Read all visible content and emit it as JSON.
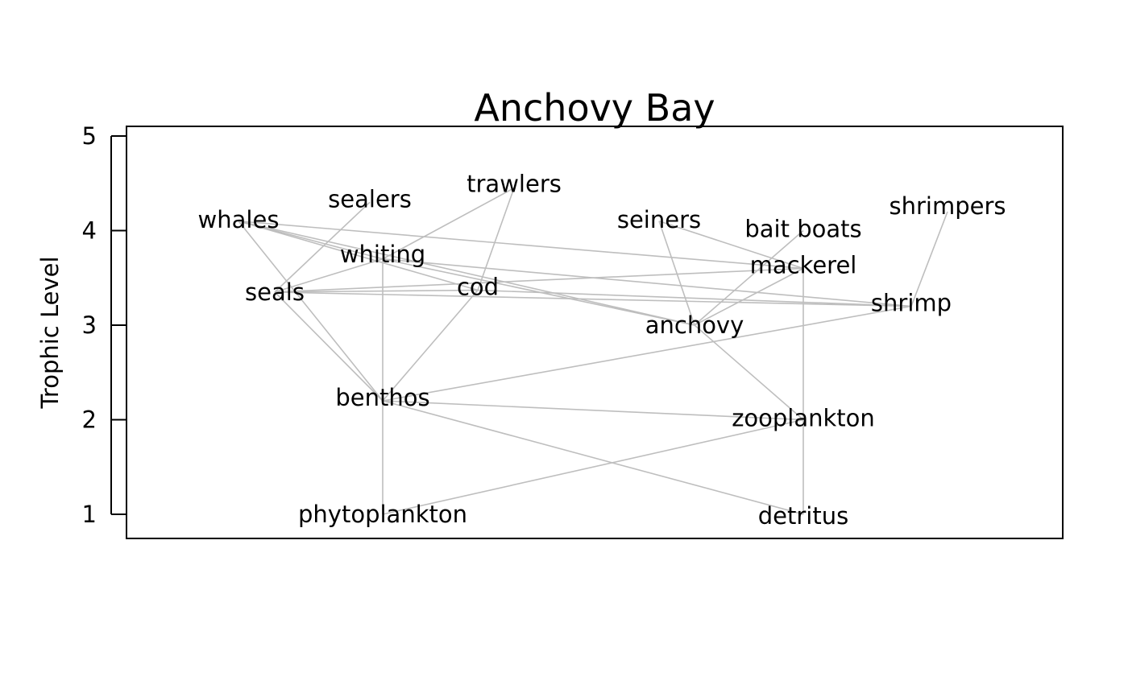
{
  "chart_data": {
    "type": "network",
    "title": "Anchovy Bay",
    "xlabel": "",
    "ylabel": "Trophic Level",
    "ylim": [
      0.75,
      5.1
    ],
    "yticks": [
      1,
      2,
      3,
      4,
      5
    ],
    "grid": false,
    "nodes": [
      {
        "id": "whales",
        "label": "whales",
        "tl": 4.1
      },
      {
        "id": "sealers",
        "label": "sealers",
        "tl": 4.3
      },
      {
        "id": "trawlers",
        "label": "trawlers",
        "tl": 4.45
      },
      {
        "id": "seiners",
        "label": "seiners",
        "tl": 4.1
      },
      {
        "id": "baitboats",
        "label": "bait boats",
        "tl": 4.0
      },
      {
        "id": "shrimpers",
        "label": "shrimpers",
        "tl": 4.2
      },
      {
        "id": "whiting",
        "label": "whiting",
        "tl": 3.7
      },
      {
        "id": "mackerel",
        "label": "mackerel",
        "tl": 3.6
      },
      {
        "id": "seals",
        "label": "seals",
        "tl": 3.35
      },
      {
        "id": "cod",
        "label": "cod",
        "tl": 3.37
      },
      {
        "id": "shrimp",
        "label": "shrimp",
        "tl": 3.2
      },
      {
        "id": "anchovy",
        "label": "anchovy",
        "tl": 3.0
      },
      {
        "id": "benthos",
        "label": "benthos",
        "tl": 2.2
      },
      {
        "id": "zooplankton",
        "label": "zooplankton",
        "tl": 2.0
      },
      {
        "id": "phytoplankton",
        "label": "phytoplankton",
        "tl": 1.0
      },
      {
        "id": "detritus",
        "label": "detritus",
        "tl": 1.0
      }
    ],
    "links": [
      [
        "whales",
        "mackerel"
      ],
      [
        "whales",
        "whiting"
      ],
      [
        "whales",
        "cod"
      ],
      [
        "whales",
        "anchovy"
      ],
      [
        "whales",
        "benthos"
      ],
      [
        "sealers",
        "seals"
      ],
      [
        "trawlers",
        "whiting"
      ],
      [
        "trawlers",
        "cod"
      ],
      [
        "seiners",
        "mackerel"
      ],
      [
        "seiners",
        "anchovy"
      ],
      [
        "baitboats",
        "anchovy"
      ],
      [
        "shrimpers",
        "shrimp"
      ],
      [
        "seals",
        "whiting"
      ],
      [
        "seals",
        "cod"
      ],
      [
        "seals",
        "mackerel"
      ],
      [
        "seals",
        "shrimp"
      ],
      [
        "seals",
        "benthos"
      ],
      [
        "whiting",
        "anchovy"
      ],
      [
        "whiting",
        "shrimp"
      ],
      [
        "whiting",
        "phytoplankton"
      ],
      [
        "cod",
        "shrimp"
      ],
      [
        "cod",
        "benthos"
      ],
      [
        "mackerel",
        "anchovy"
      ],
      [
        "mackerel",
        "detritus"
      ],
      [
        "anchovy",
        "zooplankton"
      ],
      [
        "shrimp",
        "benthos"
      ],
      [
        "benthos",
        "zooplankton"
      ],
      [
        "benthos",
        "detritus"
      ],
      [
        "zooplankton",
        "phytoplankton"
      ]
    ]
  }
}
